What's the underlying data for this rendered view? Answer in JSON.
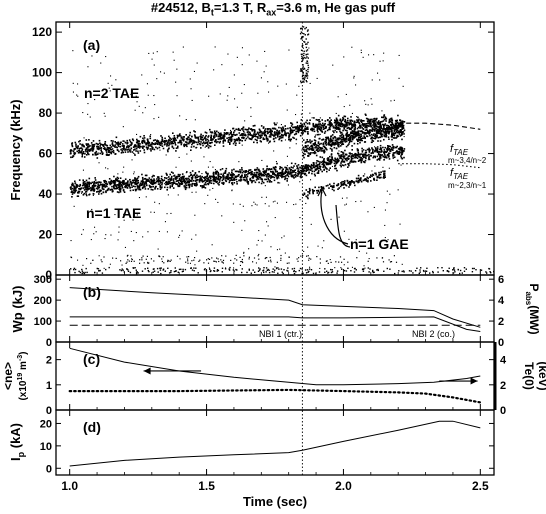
{
  "title": "#24512, Bt=1.3 T, Rax=3.6 m, He gas puff",
  "title_parts": {
    "pre": "#24512, B",
    "sub1": "t",
    "mid": "=1.3 T, R",
    "sub2": "ax",
    "post": "=3.6 m, He gas puff"
  },
  "xlabel": "Time (sec)",
  "colors": {
    "ink": "#000000",
    "background": "#ffffff"
  },
  "chart_data": [
    {
      "type": "heatmap",
      "panel_label": "(a)",
      "ylabel": "Frequency (kHz)",
      "xlim": [
        0.95,
        2.55
      ],
      "ylim": [
        0,
        125
      ],
      "x_ticks": [
        1.0,
        1.5,
        2.0,
        2.5
      ],
      "y_ticks": [
        0,
        20,
        40,
        60,
        80,
        100,
        120
      ],
      "series": [
        {
          "name": "n=2 TAE",
          "x": [
            1.0,
            1.2,
            1.4,
            1.6,
            1.8,
            1.85,
            2.0,
            2.2
          ],
          "y": [
            62,
            64,
            66,
            69,
            71,
            73,
            75,
            75
          ]
        },
        {
          "name": "n=1 TAE",
          "x": [
            1.0,
            1.2,
            1.4,
            1.6,
            1.8,
            1.85,
            2.0,
            2.2
          ],
          "y": [
            43,
            45,
            47,
            49,
            51,
            52,
            58,
            62
          ]
        },
        {
          "name": "n=1 GAE",
          "x": [
            1.85,
            1.95,
            2.05,
            2.15
          ],
          "y": [
            40,
            44,
            47,
            50
          ]
        },
        {
          "name": "f_TAE m~3,4/n~2",
          "x": [
            2.2,
            2.3,
            2.4,
            2.5
          ],
          "y": [
            75,
            75,
            74,
            72
          ]
        },
        {
          "name": "f_TAE m~2,3/n~1",
          "x": [
            2.2,
            2.3,
            2.4,
            2.5
          ],
          "y": [
            55,
            55,
            54.5,
            53
          ]
        }
      ],
      "annotations": {
        "n2_tae": "n=2 TAE",
        "n1_tae": "n=1 TAE",
        "n1_gae": "n=1 GAE",
        "ftae_label": "f",
        "ftae_sub": "TAE",
        "ftae_modes_n2": "m~3,4/n~2",
        "ftae_modes_n1": "m~2,3/n~1"
      }
    },
    {
      "type": "line",
      "panel_label": "(b)",
      "ylabel_left": "Wp (kJ)",
      "ylabel_right": "P",
      "ylabel_right_sub": "abs",
      "ylabel_right_unit": "(MW)",
      "ylim_left": [
        0,
        320
      ],
      "ylim_right": [
        0,
        6.4
      ],
      "y_ticks_left": [
        0,
        100,
        200,
        300
      ],
      "y_ticks_right": [
        0,
        2,
        4,
        6
      ],
      "series": [
        {
          "name": "Wp",
          "x": [
            1.0,
            1.3,
            1.6,
            1.8,
            1.85,
            2.0,
            2.2,
            2.33,
            2.4,
            2.5
          ],
          "y": [
            260,
            235,
            215,
            200,
            178,
            170,
            160,
            150,
            110,
            70
          ]
        },
        {
          "name": "P_abs",
          "x": [
            1.0,
            1.5,
            1.8,
            1.85,
            2.0,
            2.33,
            2.45,
            2.5
          ],
          "y": [
            2.4,
            2.4,
            2.4,
            2.3,
            2.3,
            2.4,
            1.2,
            1.0
          ]
        },
        {
          "name": "NBI",
          "x": [
            1.0,
            2.5
          ],
          "y": [
            80,
            80
          ]
        }
      ],
      "annotations": {
        "nbi1": "NBI 1 (ctr.)",
        "nbi2": "NBI 2 (co.)"
      }
    },
    {
      "type": "line",
      "panel_label": "(c)",
      "ylabel_left": "<ne>",
      "ylabel_left_unit": "(x10",
      "ylabel_left_exp": "19",
      "ylabel_left_unit2": "m",
      "ylabel_left_exp2": "-3",
      "ylabel_right": "Te(0)",
      "ylabel_right_unit": "(keV)",
      "ylim_left": [
        0,
        2.7
      ],
      "ylim_right": [
        0,
        5.4
      ],
      "y_ticks_left": [
        0,
        1,
        2
      ],
      "y_ticks_right": [
        0,
        2,
        4
      ],
      "series": [
        {
          "name": "<ne>",
          "x": [
            1.0,
            1.2,
            1.4,
            1.6,
            1.8,
            1.9,
            2.0,
            2.2,
            2.33,
            2.45,
            2.5
          ],
          "y": [
            2.45,
            1.9,
            1.55,
            1.3,
            1.1,
            1.0,
            1.0,
            1.05,
            1.1,
            1.25,
            1.35
          ]
        },
        {
          "name": "Te(0)",
          "x": [
            1.0,
            1.4,
            1.8,
            2.0,
            2.2,
            2.3,
            2.4,
            2.5
          ],
          "y": [
            1.5,
            1.5,
            1.6,
            1.5,
            1.4,
            1.3,
            1.0,
            0.6
          ]
        }
      ]
    },
    {
      "type": "line",
      "panel_label": "(d)",
      "ylabel_left": "I",
      "ylabel_left_sub": "p",
      "ylabel_left_unit": "(kA)",
      "ylim": [
        -3,
        26
      ],
      "y_ticks": [
        0,
        10,
        20
      ],
      "series": [
        {
          "name": "Ip",
          "x": [
            1.0,
            1.2,
            1.4,
            1.6,
            1.8,
            1.85,
            2.0,
            2.2,
            2.35,
            2.4,
            2.5
          ],
          "y": [
            1,
            3.5,
            5,
            6,
            7,
            8,
            12,
            17,
            21,
            21,
            18
          ]
        }
      ]
    }
  ]
}
